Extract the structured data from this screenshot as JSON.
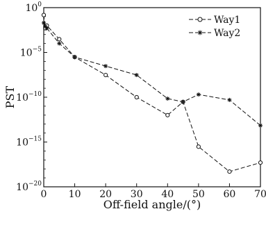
{
  "chart_data": {
    "type": "line",
    "xlabel": "Off-field angle/(°)",
    "ylabel": "PST",
    "xlim": [
      0,
      70
    ],
    "ylim": [
      1e-20,
      1
    ],
    "yscale": "log",
    "x_ticks": [
      0,
      10,
      20,
      30,
      40,
      50,
      60,
      70
    ],
    "y_ticks": [
      {
        "base": "10",
        "exp": "0",
        "value": 1
      },
      {
        "base": "10",
        "exp": "−5",
        "value": 1e-05
      },
      {
        "base": "10",
        "exp": "−10",
        "value": 1e-10
      },
      {
        "base": "10",
        "exp": "−15",
        "value": 1e-15
      },
      {
        "base": "10",
        "exp": "−20",
        "value": 1e-20
      }
    ],
    "grid": false,
    "legend_position": "top-right",
    "series": [
      {
        "name": "Way1",
        "marker": "circle",
        "x": [
          0,
          0.5,
          1,
          5,
          10,
          20,
          30,
          40,
          45,
          50,
          60,
          70
        ],
        "y": [
          0.15,
          0.005,
          0.01,
          0.0003,
          3e-06,
          3e-08,
          1e-10,
          1e-12,
          3e-11,
          3e-16,
          5e-19,
          5e-18
        ]
      },
      {
        "name": "Way2",
        "marker": "asterisk",
        "x": [
          0,
          0.5,
          1,
          5,
          10,
          20,
          30,
          40,
          45,
          50,
          60,
          70
        ],
        "y": [
          0.02,
          0.008,
          0.005,
          0.0001,
          3e-06,
          3e-07,
          3e-08,
          7e-11,
          3e-11,
          2e-10,
          5e-11,
          7e-14
        ]
      }
    ]
  }
}
